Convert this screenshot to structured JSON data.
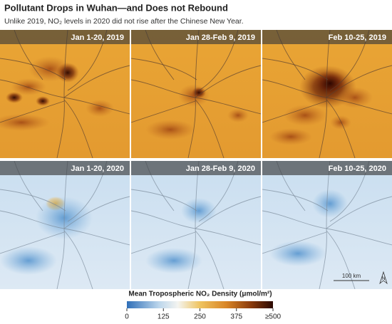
{
  "header": {
    "title": "Pollutant Drops in Wuhan—and Does not Rebound",
    "subtitle": "Unlike 2019, NO₂ levels in 2020 did not rise after the Chinese New Year."
  },
  "panels": [
    {
      "label": "Jan 1-20, 2019"
    },
    {
      "label": "Jan 28-Feb 9, 2019"
    },
    {
      "label": "Feb 10-25, 2019"
    },
    {
      "label": "Jan 1-20, 2020"
    },
    {
      "label": "Jan 28-Feb 9, 2020"
    },
    {
      "label": "Feb 10-25, 2020"
    }
  ],
  "scale_bar": "100 km",
  "north": "N",
  "colorbar": {
    "title": "Mean Tropospheric NO₂ Density (μmol/m²)",
    "lim": [
      0,
      500
    ],
    "ticks": [
      0,
      125,
      250,
      375,
      {
        "value": 500,
        "label": "≥500"
      }
    ]
  }
}
